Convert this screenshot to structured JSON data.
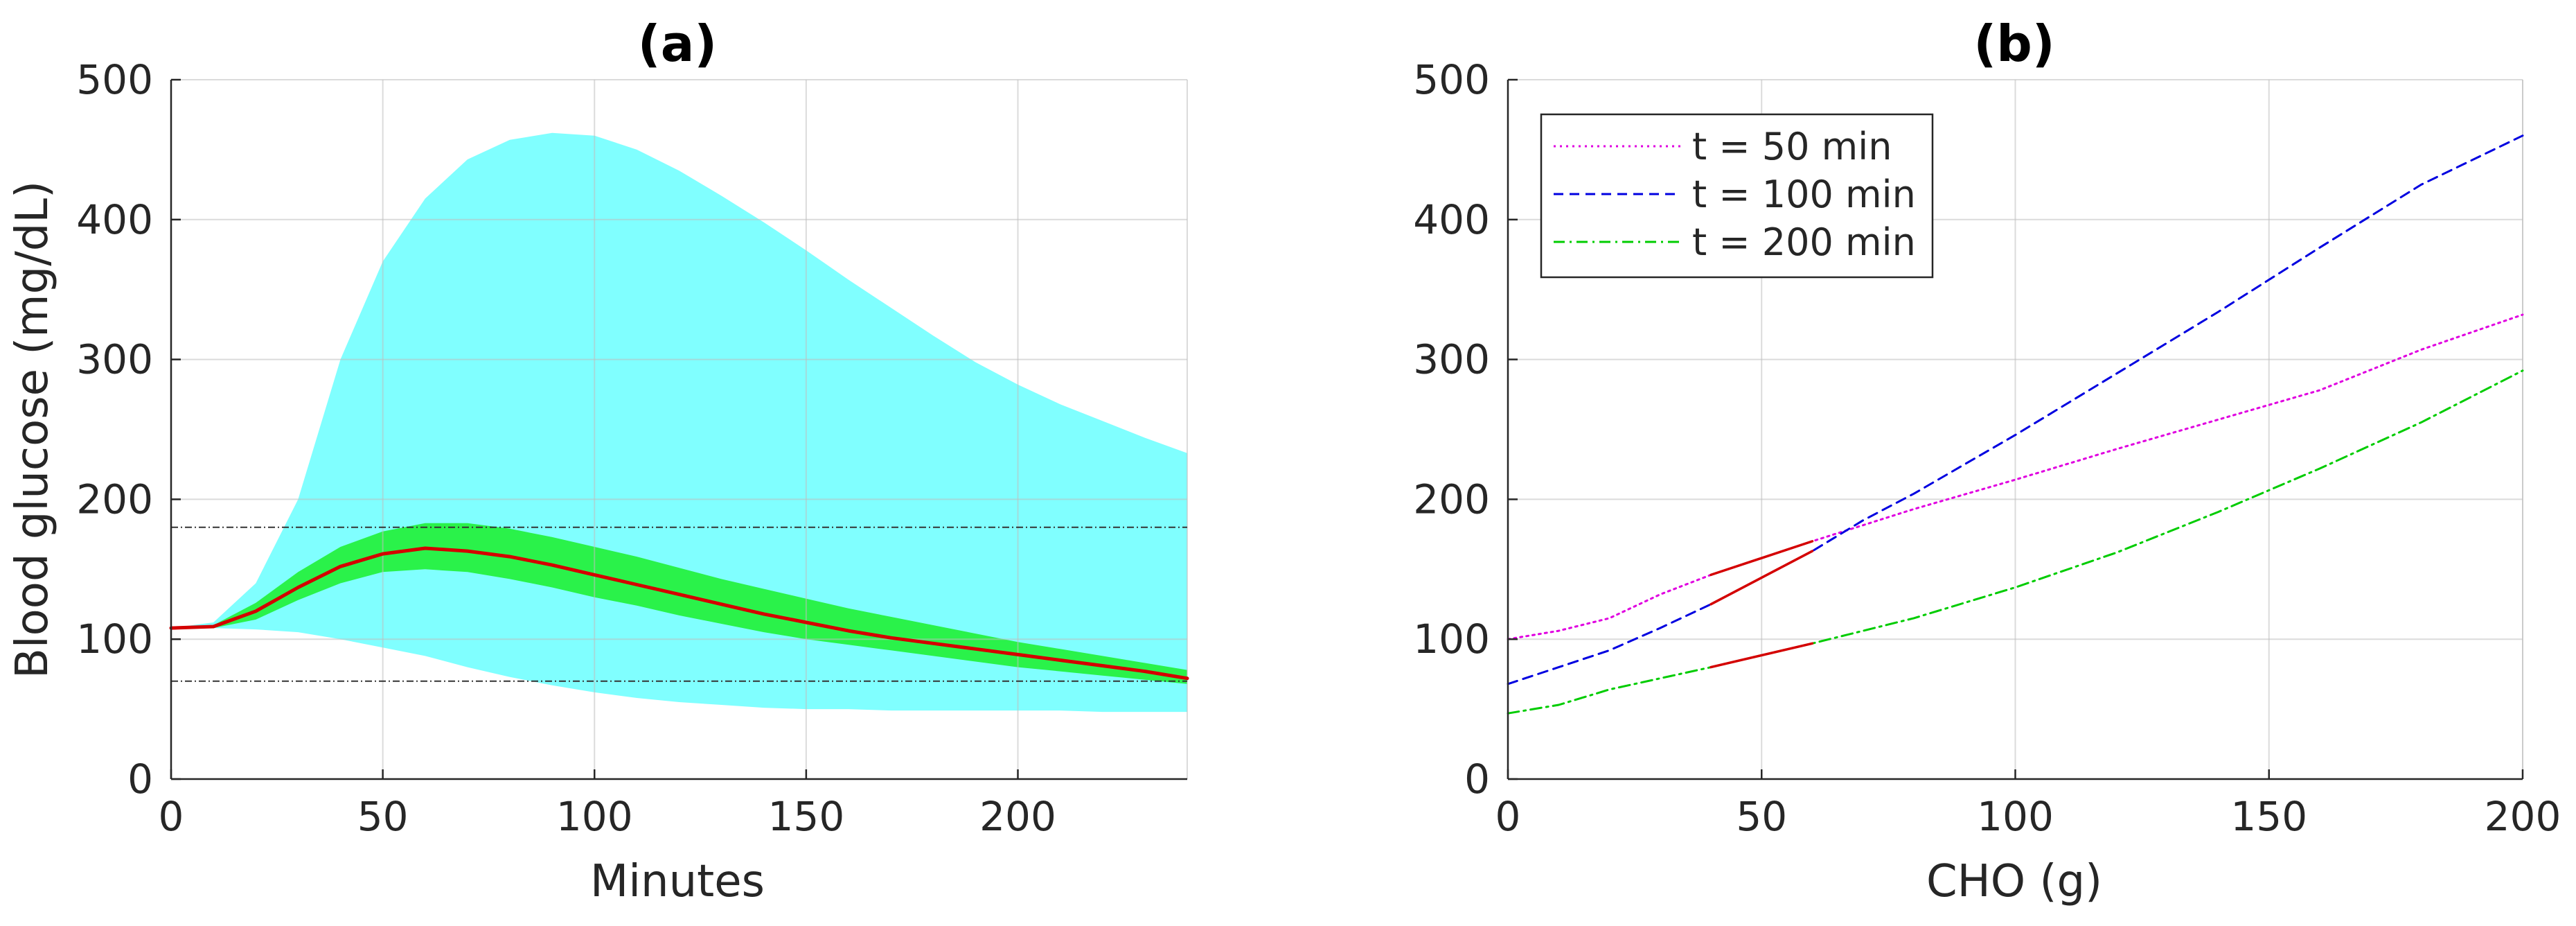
{
  "chart_data": [
    {
      "type": "area",
      "title": "(a)",
      "xlabel": "Minutes",
      "ylabel": "Blood glucose (mg/dL)",
      "xlim": [
        0,
        240
      ],
      "ylim": [
        0,
        500
      ],
      "xticks": [
        0,
        50,
        100,
        150,
        200
      ],
      "yticks": [
        0,
        100,
        200,
        300,
        400,
        500
      ],
      "grid": true,
      "x": [
        0,
        10,
        20,
        30,
        40,
        50,
        60,
        70,
        80,
        90,
        100,
        110,
        120,
        130,
        140,
        150,
        160,
        170,
        180,
        190,
        200,
        210,
        220,
        230,
        240
      ],
      "bands": [
        {
          "color": "#80ffff",
          "upper": [
            108,
            112,
            140,
            200,
            300,
            370,
            415,
            443,
            457,
            462,
            460,
            450,
            435,
            417,
            398,
            378,
            357,
            337,
            317,
            298,
            282,
            268,
            256,
            244,
            233
          ],
          "lower": [
            108,
            108,
            107,
            105,
            100,
            94,
            88,
            80,
            73,
            67,
            62,
            58,
            55,
            53,
            51,
            50,
            50,
            49,
            49,
            49,
            49,
            49,
            48,
            48,
            48
          ]
        },
        {
          "color": "#2af24a",
          "upper": [
            108,
            110,
            126,
            148,
            166,
            177,
            183,
            183,
            179,
            173,
            166,
            159,
            151,
            143,
            136,
            129,
            122,
            116,
            110,
            104,
            98,
            93,
            88,
            83,
            78
          ],
          "lower": [
            108,
            108,
            114,
            128,
            140,
            148,
            150,
            148,
            143,
            137,
            130,
            124,
            117,
            111,
            105,
            100,
            96,
            92,
            88,
            84,
            80,
            77,
            74,
            71,
            68
          ]
        }
      ],
      "series": [
        {
          "color": "#d40000",
          "style": "solid",
          "values": [
            108,
            109,
            120,
            137,
            152,
            161,
            165,
            163,
            159,
            153,
            146,
            139,
            132,
            125,
            118,
            112,
            106,
            101,
            97,
            93,
            89,
            85,
            81,
            77,
            72
          ]
        }
      ],
      "reference_lines": [
        180,
        70
      ]
    },
    {
      "type": "line",
      "title": "(b)",
      "xlabel": "CHO (g)",
      "ylabel": "",
      "xlim": [
        0,
        200
      ],
      "ylim": [
        0,
        500
      ],
      "xticks": [
        0,
        50,
        100,
        150,
        200
      ],
      "yticks": [
        0,
        100,
        200,
        300,
        400,
        500
      ],
      "grid": true,
      "legend_position": "top-left",
      "series": [
        {
          "name": "t = 50 min",
          "color": "#e000e0",
          "style": "dotted",
          "x": [
            0,
            10,
            20,
            30,
            40,
            60,
            80,
            100,
            120,
            140,
            160,
            180,
            200
          ],
          "values": [
            100,
            106,
            115,
            132,
            146,
            170,
            193,
            214,
            236,
            257,
            278,
            307,
            332
          ]
        },
        {
          "name": "t = 100 min",
          "color": "#0000e0",
          "style": "dashed",
          "x": [
            0,
            10,
            20,
            30,
            40,
            60,
            70,
            80,
            100,
            120,
            140,
            160,
            180,
            200
          ],
          "values": [
            68,
            80,
            92,
            108,
            125,
            163,
            185,
            204,
            246,
            290,
            334,
            380,
            425,
            460
          ]
        },
        {
          "name": "t = 200 min",
          "color": "#00cc00",
          "style": "dashdot",
          "x": [
            0,
            10,
            20,
            30,
            40,
            60,
            80,
            100,
            120,
            140,
            160,
            180,
            200
          ],
          "values": [
            47,
            53,
            64,
            72,
            80,
            97,
            115,
            137,
            162,
            191,
            222,
            255,
            292
          ]
        },
        {
          "color": "#d40000",
          "style": "solid",
          "x": [
            40,
            60
          ],
          "values": [
            146,
            170
          ]
        },
        {
          "color": "#d40000",
          "style": "solid",
          "x": [
            40,
            60
          ],
          "values": [
            125,
            163
          ]
        },
        {
          "color": "#d40000",
          "style": "solid",
          "x": [
            40,
            60
          ],
          "values": [
            80,
            97
          ]
        }
      ]
    }
  ]
}
